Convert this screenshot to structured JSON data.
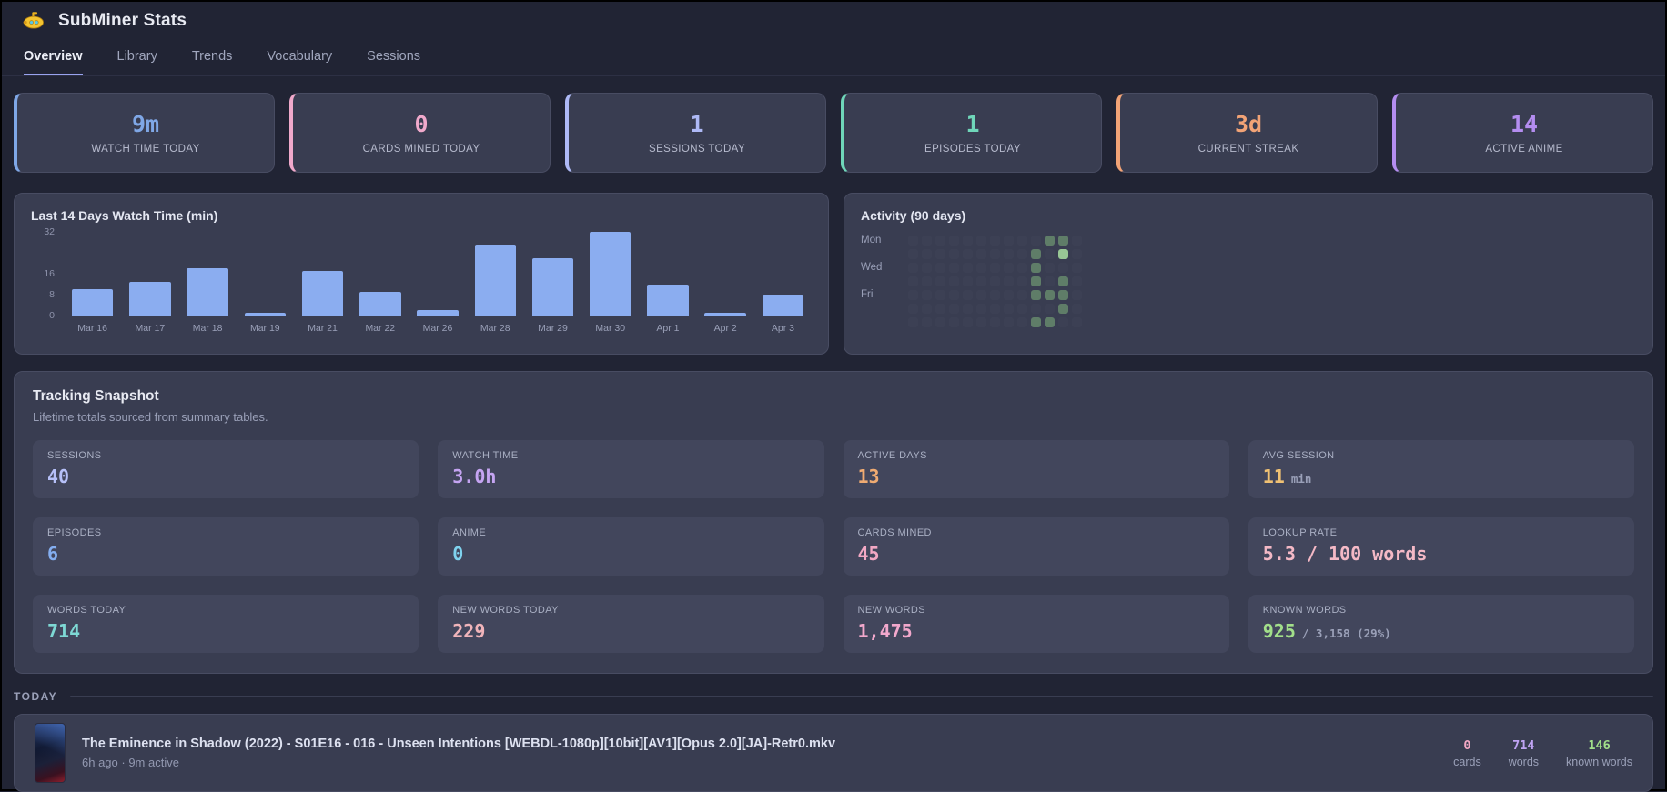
{
  "header": {
    "title": "SubMiner Stats"
  },
  "tabs": [
    {
      "label": "Overview",
      "active": true
    },
    {
      "label": "Library",
      "active": false
    },
    {
      "label": "Trends",
      "active": false
    },
    {
      "label": "Vocabulary",
      "active": false
    },
    {
      "label": "Sessions",
      "active": false
    }
  ],
  "stat_cards": [
    {
      "value": "9m",
      "label": "WATCH TIME TODAY",
      "color": "#7fa7e6"
    },
    {
      "value": "0",
      "label": "CARDS MINED TODAY",
      "color": "#f0a9cb"
    },
    {
      "value": "1",
      "label": "SESSIONS TODAY",
      "color": "#aeb9f6"
    },
    {
      "value": "1",
      "label": "EPISODES TODAY",
      "color": "#6fd6b9"
    },
    {
      "value": "3d",
      "label": "CURRENT STREAK",
      "color": "#f2a376"
    },
    {
      "value": "14",
      "label": "ACTIVE ANIME",
      "color": "#b48df0"
    }
  ],
  "chart_data": {
    "type": "bar",
    "title": "Last 14 Days Watch Time (min)",
    "categories": [
      "Mar 16",
      "Mar 17",
      "Mar 18",
      "Mar 19",
      "Mar 21",
      "Mar 22",
      "Mar 26",
      "Mar 28",
      "Mar 29",
      "Mar 30",
      "Apr 1",
      "Apr 2",
      "Apr 3"
    ],
    "values": [
      10,
      13,
      18,
      1,
      17,
      9,
      2,
      27,
      22,
      32,
      12,
      1,
      8
    ],
    "xlabel": "",
    "ylabel": "minutes",
    "ylim": [
      0,
      32
    ],
    "y_ticks": [
      0,
      8,
      16,
      32
    ],
    "bar_color": "#8badf0",
    "grid": false,
    "legend": false
  },
  "activity": {
    "title": "Activity (90 days)",
    "day_labels": [
      {
        "label": "Mon",
        "row": 0
      },
      {
        "label": "Wed",
        "row": 2
      },
      {
        "label": "Fri",
        "row": 4
      }
    ],
    "grid": {
      "rows": 7,
      "cols": 13
    },
    "colors": {
      "level1": "#5f7d68",
      "level2": "#98c795"
    },
    "cells": [
      {
        "r": 0,
        "c": 10,
        "lvl": 1
      },
      {
        "r": 0,
        "c": 11,
        "lvl": 1
      },
      {
        "r": 1,
        "c": 9,
        "lvl": 1
      },
      {
        "r": 1,
        "c": 11,
        "lvl": 2
      },
      {
        "r": 2,
        "c": 9,
        "lvl": 1
      },
      {
        "r": 3,
        "c": 9,
        "lvl": 1
      },
      {
        "r": 3,
        "c": 11,
        "lvl": 1
      },
      {
        "r": 4,
        "c": 9,
        "lvl": 1
      },
      {
        "r": 4,
        "c": 10,
        "lvl": 1
      },
      {
        "r": 4,
        "c": 11,
        "lvl": 1
      },
      {
        "r": 5,
        "c": 11,
        "lvl": 1
      },
      {
        "r": 6,
        "c": 9,
        "lvl": 1
      },
      {
        "r": 6,
        "c": 10,
        "lvl": 1
      }
    ]
  },
  "snapshot": {
    "title": "Tracking Snapshot",
    "subtitle": "Lifetime totals sourced from summary tables.",
    "tiles": [
      {
        "label": "SESSIONS",
        "value": "40",
        "suffix": "",
        "color": "#b6c0f8"
      },
      {
        "label": "WATCH TIME",
        "value": "3.0h",
        "suffix": "",
        "color": "#c5a4f2"
      },
      {
        "label": "ACTIVE DAYS",
        "value": "13",
        "suffix": "",
        "color": "#f0ab72"
      },
      {
        "label": "AVG SESSION",
        "value": "11",
        "suffix": "min",
        "color": "#f0c173"
      },
      {
        "label": "EPISODES",
        "value": "6",
        "suffix": "",
        "color": "#84aef0"
      },
      {
        "label": "ANIME",
        "value": "0",
        "suffix": "",
        "color": "#7fd2ee"
      },
      {
        "label": "CARDS MINED",
        "value": "45",
        "suffix": "",
        "color": "#f2a8c4"
      },
      {
        "label": "LOOKUP RATE",
        "value": "5.3 / 100 words",
        "suffix": "",
        "color": "#f4b9c6"
      },
      {
        "label": "WORDS TODAY",
        "value": "714",
        "suffix": "",
        "color": "#7ed8d4"
      },
      {
        "label": "NEW WORDS TODAY",
        "value": "229",
        "suffix": "",
        "color": "#f0b4ba"
      },
      {
        "label": "NEW WORDS",
        "value": "1,475",
        "suffix": "",
        "color": "#f2a8cc"
      },
      {
        "label": "KNOWN WORDS",
        "value": "925",
        "suffix": "/ 3,158 (29%)",
        "color": "#a2df8a"
      }
    ]
  },
  "today": {
    "heading": "TODAY",
    "episode": {
      "title": "The Eminence in Shadow (2022) - S01E16 - 016 - Unseen Intentions [WEBDL-1080p][10bit][AV1][Opus 2.0][JA]-Retr0.mkv",
      "meta": "6h ago · 9m active",
      "stats": [
        {
          "value": "0",
          "label": "cards",
          "color": "#f2a8c4"
        },
        {
          "value": "714",
          "label": "words",
          "color": "#c0a4f4"
        },
        {
          "value": "146",
          "label": "known words",
          "color": "#a2df8a"
        }
      ]
    }
  }
}
